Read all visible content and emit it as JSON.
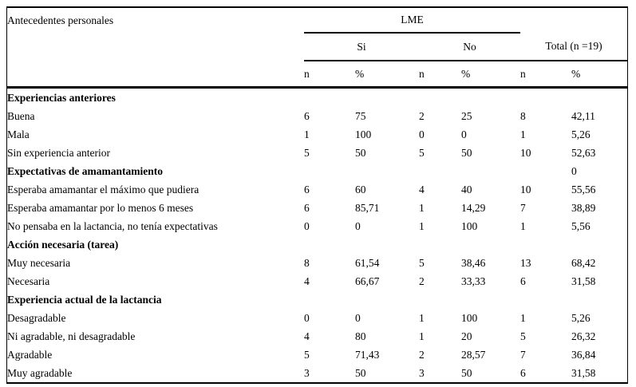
{
  "colors": {
    "background": "#ffffff",
    "text": "#000000",
    "rule": "#000000"
  },
  "figure": {
    "row_label_header": "Antecedentes personales",
    "group_header": "LME",
    "subgroup_headers": [
      "Si",
      "No",
      "Total (n =19)"
    ],
    "measure_headers": [
      "n",
      "%",
      "n",
      "%",
      "n",
      "%"
    ],
    "sections": [
      {
        "title": "Experiencias anteriores",
        "values": [
          "",
          "",
          "",
          "",
          "",
          ""
        ],
        "rows": [
          {
            "label": "Buena",
            "values": [
              "6",
              "75",
              "2",
              "25",
              "8",
              "42,11"
            ]
          },
          {
            "label": "Mala",
            "values": [
              "1",
              "100",
              "0",
              "0",
              "1",
              "5,26"
            ]
          },
          {
            "label": "Sin experiencia anterior",
            "values": [
              "5",
              "50",
              "5",
              "50",
              "10",
              "52,63"
            ]
          }
        ]
      },
      {
        "title": "Expectativas de amamantamiento",
        "values": [
          "",
          "",
          "",
          "",
          "",
          "0"
        ],
        "rows": [
          {
            "label": "Esperaba amamantar el máximo que pudiera",
            "values": [
              "6",
              "60",
              "4",
              "40",
              "10",
              "55,56"
            ]
          },
          {
            "label": "Esperaba amamantar por lo menos 6 meses",
            "values": [
              "6",
              "85,71",
              "1",
              "14,29",
              "7",
              "38,89"
            ]
          },
          {
            "label": "No pensaba en la lactancia, no tenía expectativas",
            "values": [
              "0",
              "0",
              "1",
              "100",
              "1",
              "5,56"
            ]
          }
        ]
      },
      {
        "title": "Acción necesaria (tarea)",
        "values": [
          "",
          "",
          "",
          "",
          "",
          ""
        ],
        "rows": [
          {
            "label": "Muy necesaria",
            "values": [
              "8",
              "61,54",
              "5",
              "38,46",
              "13",
              "68,42"
            ]
          },
          {
            "label": "Necesaria",
            "values": [
              "4",
              "66,67",
              "2",
              "33,33",
              "6",
              "31,58"
            ]
          }
        ]
      },
      {
        "title": "Experiencia actual de la lactancia",
        "values": [
          "",
          "",
          "",
          "",
          "",
          ""
        ],
        "rows": [
          {
            "label": "Desagradable",
            "values": [
              "0",
              "0",
              "1",
              "100",
              "1",
              "5,26"
            ]
          },
          {
            "label": "Ni agradable, ni desagradable",
            "values": [
              "4",
              "80",
              "1",
              "20",
              "5",
              "26,32"
            ]
          },
          {
            "label": "Agradable",
            "values": [
              "5",
              "71,43",
              "2",
              "28,57",
              "7",
              "36,84"
            ]
          },
          {
            "label": "Muy agradable",
            "values": [
              "3",
              "50",
              "3",
              "50",
              "6",
              "31,58"
            ]
          }
        ]
      }
    ]
  }
}
